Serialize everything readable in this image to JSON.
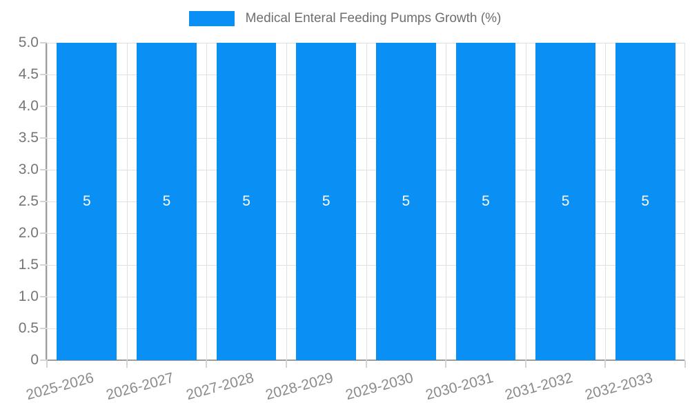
{
  "chart_data": {
    "type": "bar",
    "title": "Medical Enteral Feeding Pumps Growth (%)",
    "categories": [
      "2025-2026",
      "2026-2027",
      "2027-2028",
      "2028-2029",
      "2029-2030",
      "2030-2031",
      "2031-2032",
      "2032-2033"
    ],
    "values": [
      5,
      5,
      5,
      5,
      5,
      5,
      5,
      5
    ],
    "bar_value_labels": [
      "5",
      "5",
      "5",
      "5",
      "5",
      "5",
      "5",
      "5"
    ],
    "xlabel": "",
    "ylabel": "",
    "ylim": [
      0,
      5
    ],
    "ytick_labels": [
      "0",
      "0.5",
      "1.0",
      "1.5",
      "2.0",
      "2.5",
      "3.0",
      "3.5",
      "4.0",
      "4.5",
      "5.0"
    ],
    "grid": true,
    "legend_position": "top-center",
    "colors": {
      "bar": "#0a8ff5",
      "grid": "#e0e0e0",
      "axis": "#9c9c9c",
      "tick": "#d4d4d4",
      "ytick_text": "#757575",
      "xtick_text": "#8a8a8a",
      "legend_text": "#6e6e6e",
      "bar_label_text": "#ffffff"
    }
  }
}
